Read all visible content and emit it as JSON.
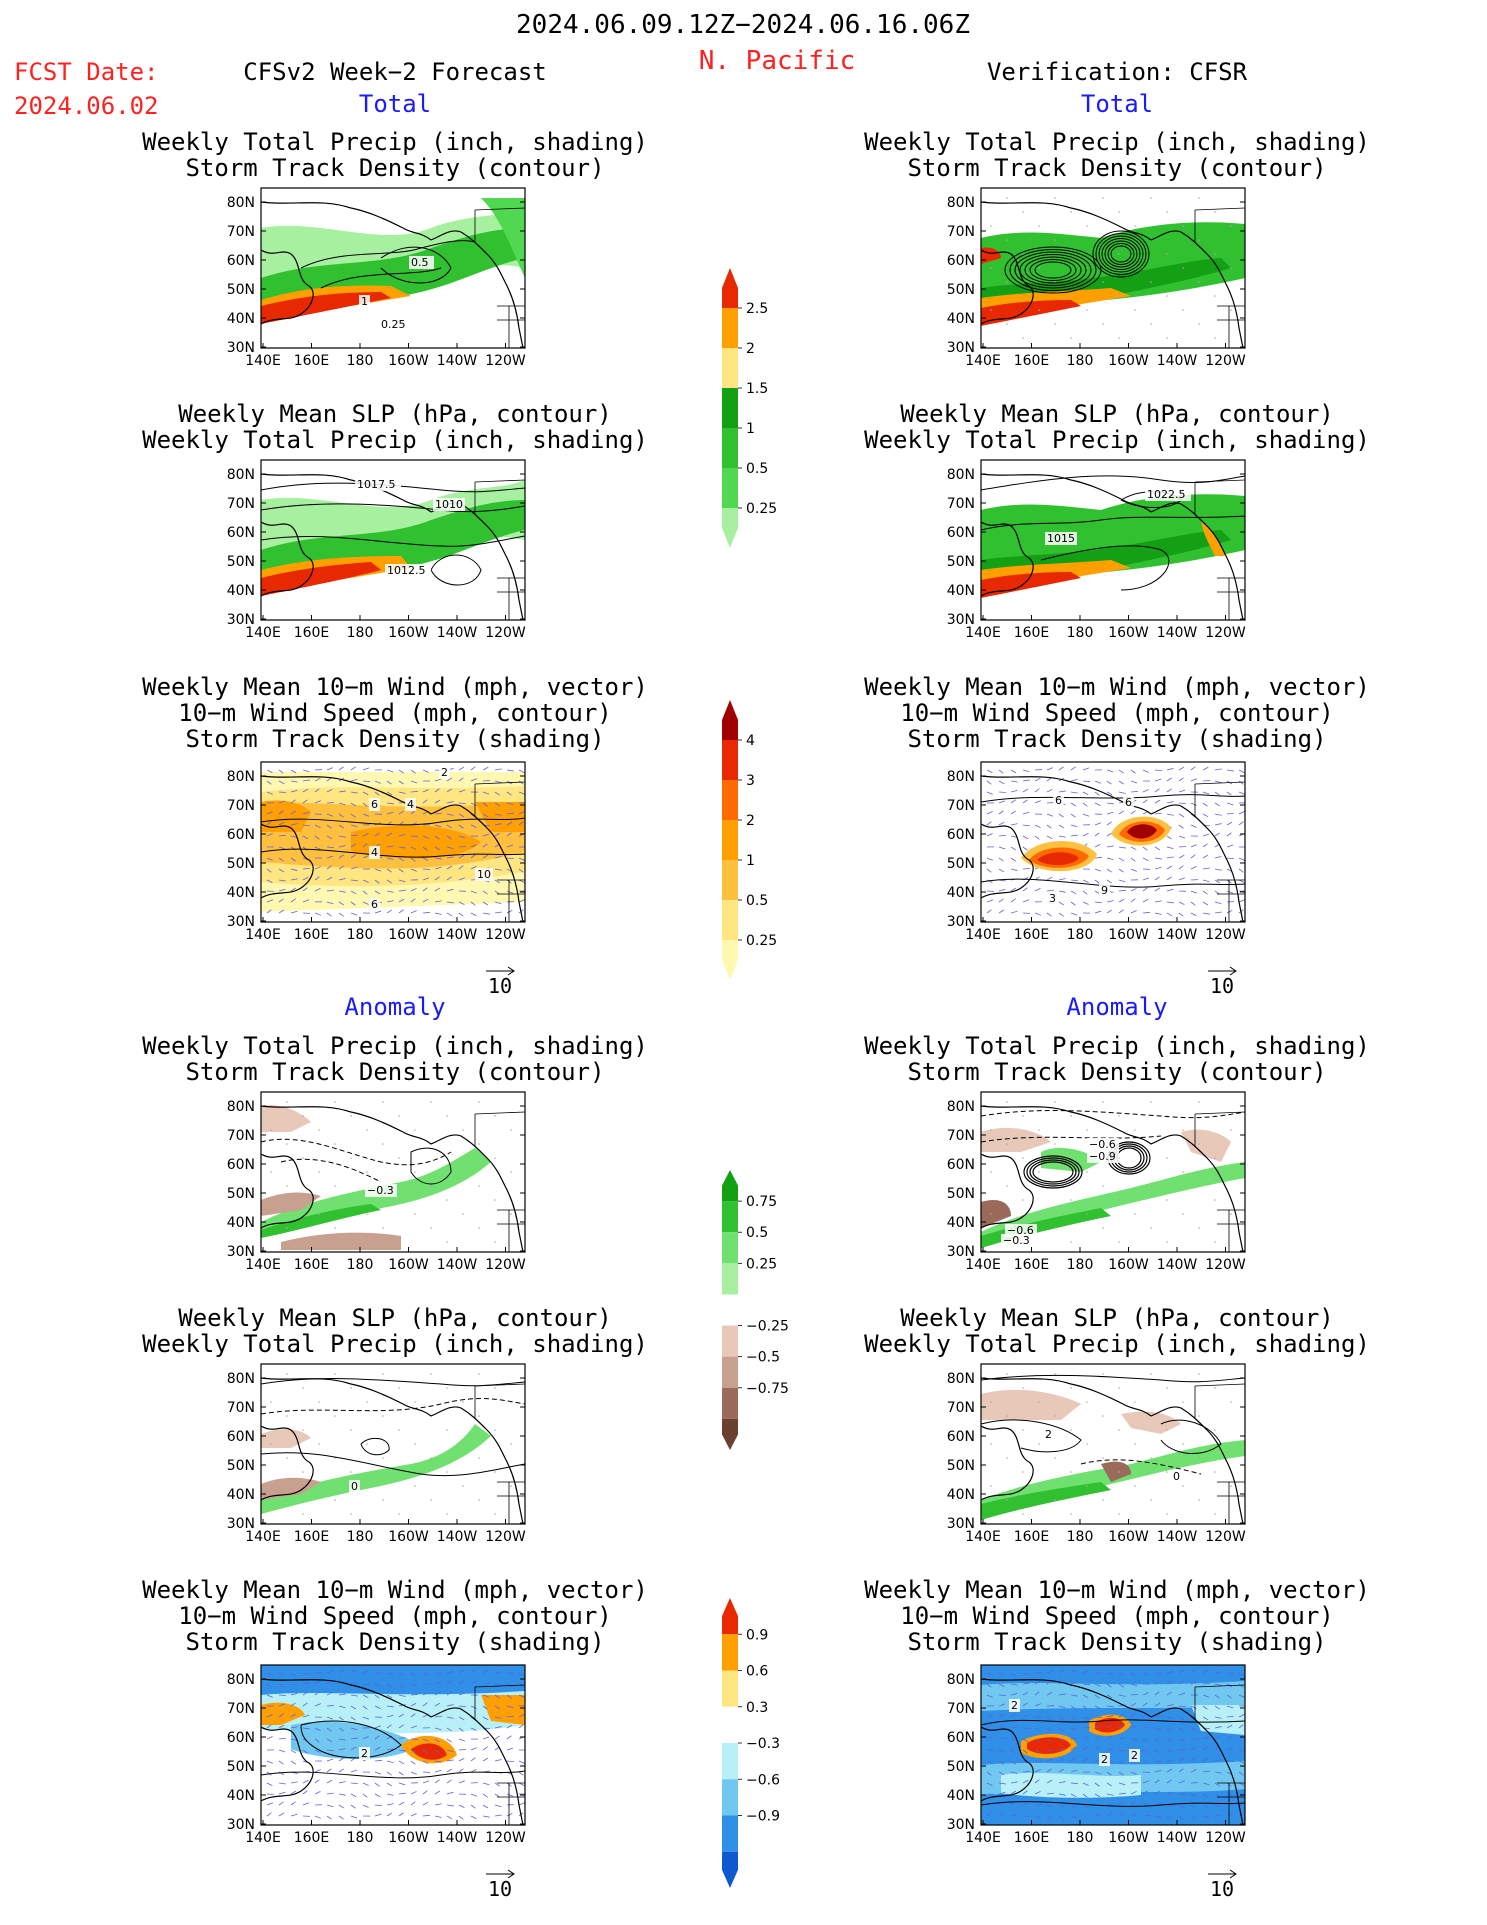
{
  "header": {
    "period": "2024.06.09.12Z−2024.06.16.06Z",
    "region": "N. Pacific",
    "fcst_label": "FCST Date:",
    "fcst_date": "2024.06.02",
    "left_title": "CFSv2 Week−2 Forecast",
    "right_title": "Verification: CFSR",
    "total": "Total",
    "anomaly": "Anomaly"
  },
  "panel_titles": {
    "precip_track": [
      "Weekly Total Precip (inch, shading)",
      "Storm Track Density (contour)"
    ],
    "slp_precip": [
      "Weekly Mean SLP (hPa, contour)",
      "Weekly Total Precip (inch, shading)"
    ],
    "wind_track": [
      "Weekly Mean 10−m Wind (mph, vector)",
      "10−m Wind Speed (mph, contour)",
      "Storm Track Density (shading)"
    ]
  },
  "axes": {
    "lat_labels": [
      "80N",
      "70N",
      "60N",
      "50N",
      "40N",
      "30N"
    ],
    "lon_labels": [
      "140E",
      "160E",
      "180",
      "160W",
      "140W",
      "120W"
    ]
  },
  "vector_ref": "10",
  "colorbars": [
    {
      "id": "precip_total",
      "levels": [
        "0.25",
        "0.5",
        "1",
        "1.5",
        "2",
        "2.5"
      ],
      "colors": [
        "#a6f0a0",
        "#50d850",
        "#30c030",
        "#14a014",
        "#ffe680",
        "#ffa000",
        "#e82800"
      ]
    },
    {
      "id": "track_total",
      "levels": [
        "0.25",
        "0.5",
        "1",
        "2",
        "3",
        "4"
      ],
      "colors": [
        "#fff8b0",
        "#ffe680",
        "#ffc040",
        "#ffa000",
        "#ff6a00",
        "#e82800",
        "#a00000"
      ]
    },
    {
      "id": "precip_anom",
      "levels": [
        "0.75",
        "0.5",
        "0.25",
        "−0.25",
        "−0.5",
        "−0.75"
      ],
      "colors": [
        "#14a014",
        "#30c030",
        "#70e070",
        "#a8f0a0",
        "#ffffff",
        "#e8c8b8",
        "#c8a090",
        "#9a6a5a",
        "#6a4030"
      ]
    },
    {
      "id": "track_anom",
      "levels": [
        "0.9",
        "0.6",
        "0.3",
        "−0.3",
        "−0.6",
        "−0.9"
      ],
      "colors": [
        "#e82800",
        "#ffa000",
        "#ffe680",
        "#ffffff",
        "#b8f0f8",
        "#70c8f0",
        "#3090e8",
        "#1058d0"
      ]
    }
  ],
  "panels": [
    {
      "id": "fc-total-precip",
      "labels": [
        "0.5",
        "1",
        "0.25"
      ]
    },
    {
      "id": "fc-total-slp",
      "labels": [
        "1017.5",
        "1010",
        "1012.5"
      ]
    },
    {
      "id": "fc-total-wind",
      "labels": [
        "2",
        "6",
        "4",
        "4",
        "10",
        "6"
      ]
    },
    {
      "id": "fc-anom-precip",
      "labels": [
        "−0.3"
      ]
    },
    {
      "id": "fc-anom-slp",
      "labels": [
        "0"
      ]
    },
    {
      "id": "fc-anom-wind",
      "labels": [
        "2"
      ]
    },
    {
      "id": "vf-total-precip",
      "labels": []
    },
    {
      "id": "vf-total-slp",
      "labels": [
        "1022.5",
        "1015"
      ]
    },
    {
      "id": "vf-total-wind",
      "labels": [
        "6",
        "6",
        "3",
        "9"
      ]
    },
    {
      "id": "vf-anom-precip",
      "labels": [
        "−0.6",
        "−0.9",
        "−0.6",
        "−0.3"
      ]
    },
    {
      "id": "vf-anom-slp",
      "labels": [
        "2",
        "0"
      ]
    },
    {
      "id": "vf-anom-wind",
      "labels": [
        "2",
        "2",
        "2"
      ]
    }
  ]
}
